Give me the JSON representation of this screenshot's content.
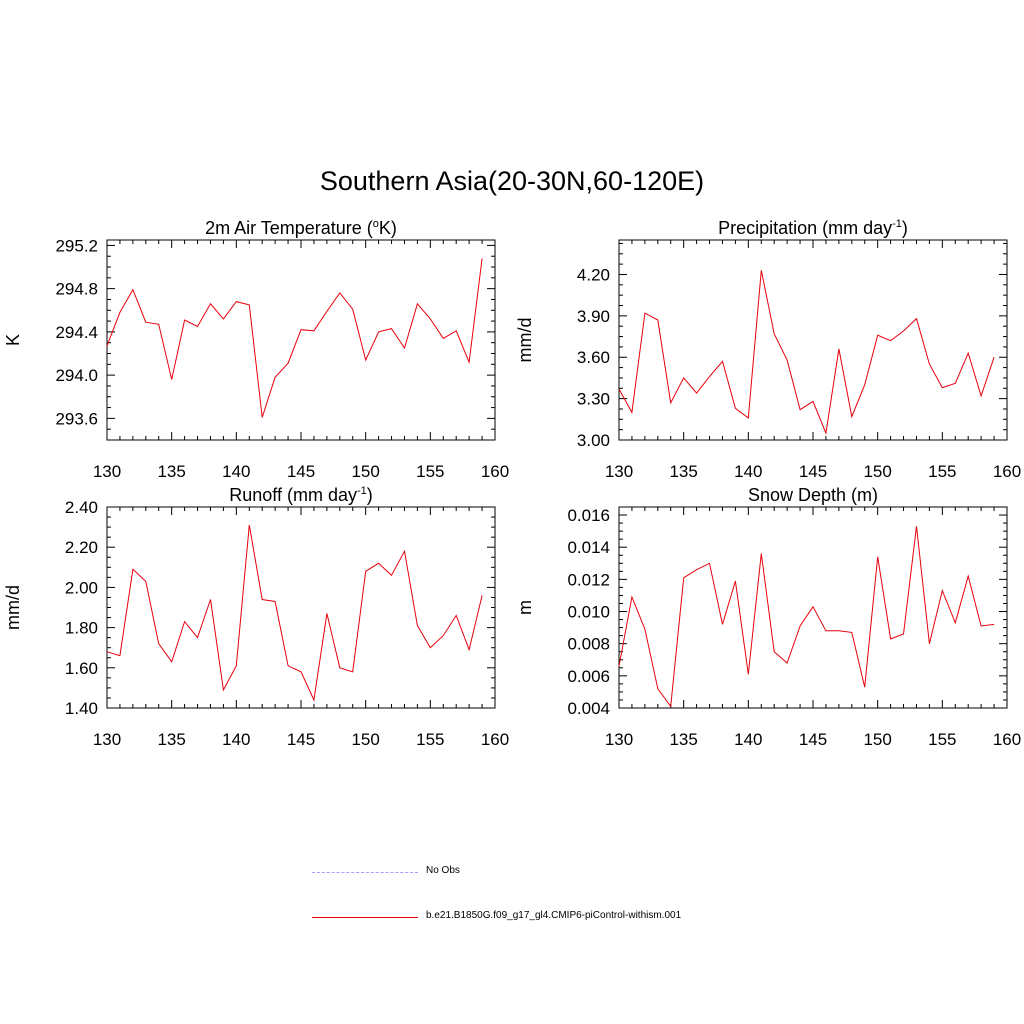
{
  "figure": {
    "title": "Southern Asia(20-30N,60-120E)"
  },
  "colors": {
    "model_line": "#e8000b",
    "obs_line": "#a0a0ff"
  },
  "legend": [
    {
      "label": "No Obs",
      "style": "dashed",
      "color": "#a0a0ff"
    },
    {
      "label": "b.e21.B1850G.f09_g17_gl4.CMIP6-piControl-withism.001",
      "style": "solid",
      "color": "#e8000b"
    }
  ],
  "chart_data": [
    {
      "type": "line",
      "title": "2m Air Temperature (°K)",
      "title_parts": {
        "pre": "2m Air Temperature (",
        "sup": "o",
        "post": "K)"
      },
      "ylabel": "K",
      "xlim": [
        130,
        160
      ],
      "ylim": [
        293.4,
        295.25
      ],
      "xticks": [
        130,
        135,
        140,
        145,
        150,
        155,
        160
      ],
      "yticks": [
        293.6,
        294.0,
        294.4,
        294.8,
        295.2
      ],
      "ytick_decimals": 1,
      "x": [
        130,
        131,
        132,
        133,
        134,
        135,
        136,
        137,
        138,
        139,
        140,
        141,
        142,
        143,
        144,
        145,
        146,
        147,
        148,
        149,
        150,
        151,
        152,
        153,
        154,
        155,
        156,
        157,
        158,
        159
      ],
      "series": [
        {
          "name": "b.e21.B1850G.f09_g17_gl4.CMIP6-piControl-withism.001",
          "values": [
            294.27,
            294.58,
            294.79,
            294.49,
            294.47,
            293.96,
            294.51,
            294.45,
            294.66,
            294.52,
            294.68,
            294.65,
            293.61,
            293.98,
            294.11,
            294.42,
            294.41,
            294.59,
            294.76,
            294.61,
            294.14,
            294.4,
            294.43,
            294.25,
            294.66,
            294.52,
            294.34,
            294.41,
            294.12,
            295.08
          ]
        }
      ]
    },
    {
      "type": "line",
      "title": "Precipitation (mm day-1)",
      "title_parts": {
        "pre": "Precipitation (mm day",
        "sup": "-1",
        "post": ")"
      },
      "ylabel": "mm/d",
      "xlim": [
        130,
        160
      ],
      "ylim": [
        3.0,
        4.45
      ],
      "xticks": [
        130,
        135,
        140,
        145,
        150,
        155,
        160
      ],
      "yticks": [
        3.0,
        3.3,
        3.6,
        3.9,
        4.2
      ],
      "ytick_decimals": 2,
      "x": [
        130,
        131,
        132,
        133,
        134,
        135,
        136,
        137,
        138,
        139,
        140,
        141,
        142,
        143,
        144,
        145,
        146,
        147,
        148,
        149,
        150,
        151,
        152,
        153,
        154,
        155,
        156,
        157,
        158,
        159
      ],
      "series": [
        {
          "name": "b.e21.B1850G.f09_g17_gl4.CMIP6-piControl-withism.001",
          "values": [
            3.37,
            3.2,
            3.92,
            3.87,
            3.27,
            3.45,
            3.34,
            3.46,
            3.57,
            3.23,
            3.16,
            4.23,
            3.77,
            3.58,
            3.22,
            3.28,
            3.05,
            3.66,
            3.17,
            3.4,
            3.76,
            3.72,
            3.79,
            3.88,
            3.55,
            3.38,
            3.41,
            3.63,
            3.32,
            3.6
          ]
        }
      ]
    },
    {
      "type": "line",
      "title": "Runoff (mm day-1)",
      "title_parts": {
        "pre": "Runoff (mm day",
        "sup": "-1",
        "post": ")"
      },
      "ylabel": "mm/d",
      "xlim": [
        130,
        160
      ],
      "ylim": [
        1.4,
        2.4
      ],
      "xticks": [
        130,
        135,
        140,
        145,
        150,
        155,
        160
      ],
      "yticks": [
        1.4,
        1.6,
        1.8,
        2.0,
        2.2,
        2.4
      ],
      "ytick_decimals": 2,
      "x": [
        130,
        131,
        132,
        133,
        134,
        135,
        136,
        137,
        138,
        139,
        140,
        141,
        142,
        143,
        144,
        145,
        146,
        147,
        148,
        149,
        150,
        151,
        152,
        153,
        154,
        155,
        156,
        157,
        158,
        159
      ],
      "series": [
        {
          "name": "b.e21.B1850G.f09_g17_gl4.CMIP6-piControl-withism.001",
          "values": [
            1.68,
            1.66,
            2.09,
            2.03,
            1.72,
            1.63,
            1.83,
            1.75,
            1.94,
            1.49,
            1.61,
            2.31,
            1.94,
            1.93,
            1.61,
            1.58,
            1.44,
            1.87,
            1.6,
            1.58,
            2.08,
            2.12,
            2.06,
            2.18,
            1.81,
            1.7,
            1.76,
            1.86,
            1.69,
            1.96
          ]
        }
      ]
    },
    {
      "type": "line",
      "title": "Snow Depth (m)",
      "title_parts": {
        "pre": "Snow Depth (m)",
        "sup": "",
        "post": ""
      },
      "ylabel": "m",
      "xlim": [
        130,
        160
      ],
      "ylim": [
        0.004,
        0.0165
      ],
      "xticks": [
        130,
        135,
        140,
        145,
        150,
        155,
        160
      ],
      "yticks": [
        0.004,
        0.006,
        0.008,
        0.01,
        0.012,
        0.014,
        0.016
      ],
      "ytick_decimals": 3,
      "x": [
        130,
        131,
        132,
        133,
        134,
        135,
        136,
        137,
        138,
        139,
        140,
        141,
        142,
        143,
        144,
        145,
        146,
        147,
        148,
        149,
        150,
        151,
        152,
        153,
        154,
        155,
        156,
        157,
        158,
        159
      ],
      "series": [
        {
          "name": "b.e21.B1850G.f09_g17_gl4.CMIP6-piControl-withism.001",
          "values": [
            0.0066,
            0.0109,
            0.0089,
            0.0052,
            0.0041,
            0.0121,
            0.0126,
            0.013,
            0.0092,
            0.0119,
            0.0061,
            0.0136,
            0.0075,
            0.0068,
            0.0091,
            0.0103,
            0.0088,
            0.0088,
            0.0087,
            0.0053,
            0.0134,
            0.0083,
            0.0086,
            0.0153,
            0.008,
            0.0113,
            0.0093,
            0.0122,
            0.0091,
            0.0092
          ]
        }
      ]
    }
  ]
}
